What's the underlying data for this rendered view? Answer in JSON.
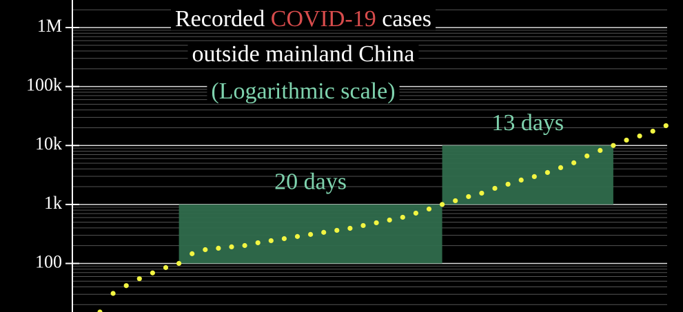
{
  "chart_data": {
    "type": "scatter",
    "title": {
      "line1": [
        "Recorded",
        "COVID-19",
        "cases"
      ],
      "line2": "outside mainland China"
    },
    "subtitle": "(Logarithmic scale)",
    "log_scale": true,
    "grid": true,
    "minor_grid": true,
    "color": "#f2f542",
    "highlight_color": "#d84c4c",
    "annotation_color": "#7fd3ae",
    "box_color": "#2f6b4c",
    "categories": [
      null,
      null,
      null,
      null,
      null,
      null,
      null,
      null,
      null,
      null,
      null,
      null,
      null,
      null,
      null,
      null,
      null,
      null,
      null,
      null,
      null,
      null,
      null,
      null,
      null,
      null,
      null,
      null,
      null,
      null,
      null,
      null,
      null,
      null,
      null,
      null,
      null,
      null,
      null,
      null,
      null,
      null,
      null,
      null
    ],
    "values": [
      15,
      31,
      42,
      55,
      69,
      85,
      100,
      146,
      171,
      181,
      191,
      201,
      224,
      243,
      263,
      286,
      310,
      336,
      364,
      394,
      439,
      489,
      544,
      606,
      712,
      837,
      1000,
      1157,
      1358,
      1555,
      1875,
      2204,
      2593,
      2966,
      3484,
      4207,
      5081,
      6643,
      8241,
      10000,
      12332,
      14490,
      17492,
      21680
    ],
    "ylim": [
      15,
      2930000
    ],
    "yticks": [
      100,
      {
        "value": 1000,
        "label": "1k"
      },
      {
        "value": 10000,
        "label": "10k"
      },
      {
        "value": 100000,
        "label": "100k"
      },
      {
        "value": 1000000,
        "label": "1M"
      }
    ],
    "annotations": [
      {
        "text": "20 days",
        "x": [
          6,
          26
        ],
        "y": [
          100,
          1000
        ]
      },
      {
        "text": "13 days",
        "x": [
          26,
          39
        ],
        "y": [
          1000,
          10000
        ]
      }
    ]
  }
}
